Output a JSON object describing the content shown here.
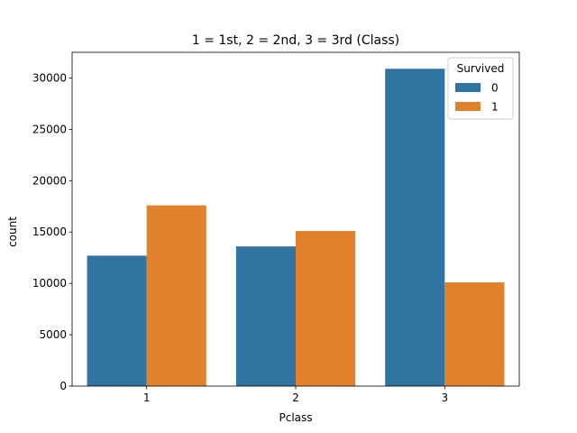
{
  "chart_data": {
    "type": "bar",
    "title": "1 = 1st, 2 = 2nd, 3 = 3rd (Class)",
    "xlabel": "Pclass",
    "ylabel": "count",
    "categories": [
      "1",
      "2",
      "3"
    ],
    "series": [
      {
        "name": "0",
        "color": "#3274a1",
        "values": [
          12700,
          13600,
          30900
        ]
      },
      {
        "name": "1",
        "color": "#e1812c",
        "values": [
          17600,
          15100,
          10100
        ]
      }
    ],
    "ylim": [
      0,
      32500
    ],
    "yticks": [
      0,
      5000,
      10000,
      15000,
      20000,
      25000,
      30000
    ],
    "grid": false,
    "legend": {
      "title": "Survived",
      "placement": "top-right"
    }
  }
}
